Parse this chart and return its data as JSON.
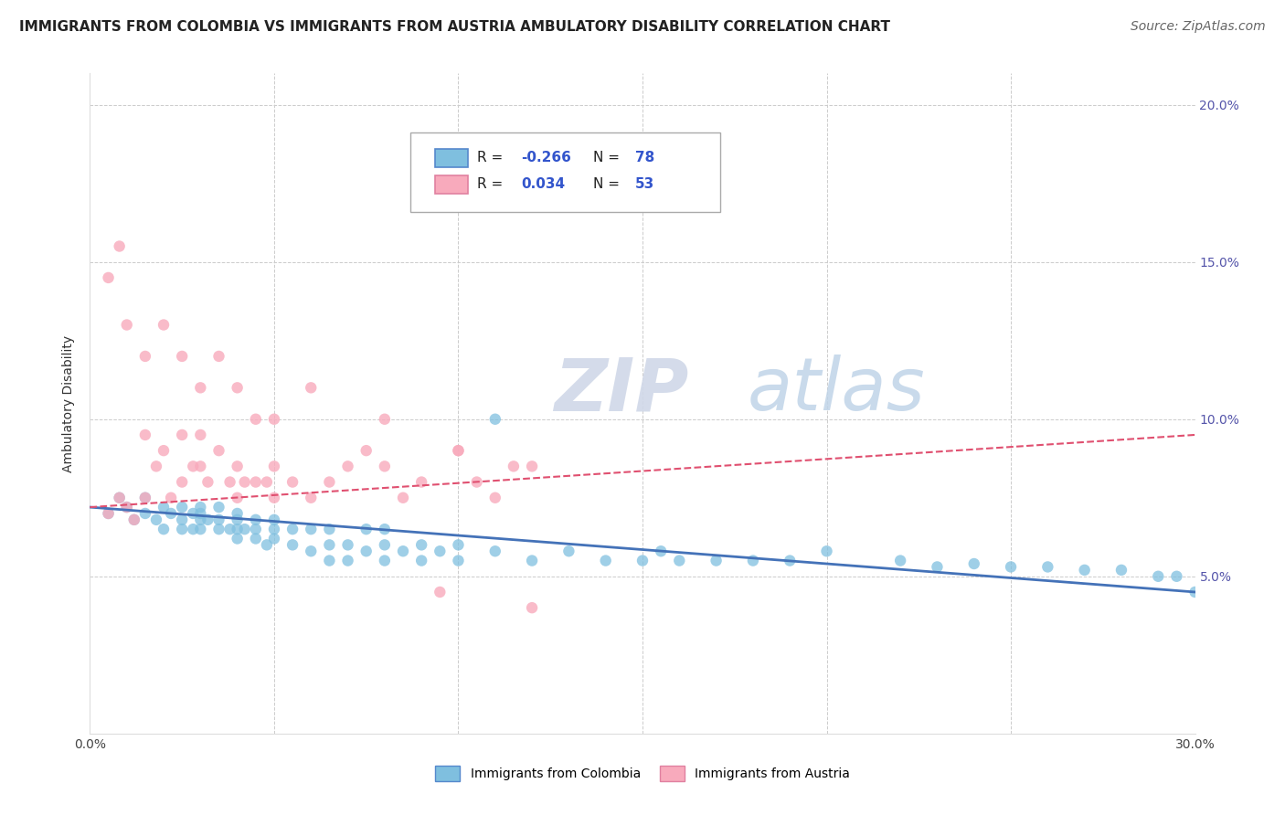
{
  "title": "IMMIGRANTS FROM COLOMBIA VS IMMIGRANTS FROM AUSTRIA AMBULATORY DISABILITY CORRELATION CHART",
  "source": "Source: ZipAtlas.com",
  "ylabel": "Ambulatory Disability",
  "xlim": [
    0.0,
    0.3
  ],
  "ylim": [
    0.0,
    0.21
  ],
  "x_ticks": [
    0.0,
    0.05,
    0.1,
    0.15,
    0.2,
    0.25,
    0.3
  ],
  "y_ticks": [
    0.0,
    0.05,
    0.1,
    0.15,
    0.2
  ],
  "y_tick_labels": [
    "",
    "5.0%",
    "10.0%",
    "15.0%",
    "20.0%"
  ],
  "colombia_R": "-0.266",
  "colombia_N": "78",
  "austria_R": "0.034",
  "austria_N": "53",
  "colombia_color": "#7fbfdf",
  "austria_color": "#f8aabc",
  "colombia_line_color": "#4472b8",
  "austria_line_color": "#e05070",
  "background_color": "#ffffff",
  "grid_color": "#cccccc",
  "legend_labels": [
    "Immigrants from Colombia",
    "Immigrants from Austria"
  ],
  "colombia_scatter_x": [
    0.005,
    0.008,
    0.01,
    0.012,
    0.015,
    0.015,
    0.018,
    0.02,
    0.02,
    0.022,
    0.025,
    0.025,
    0.025,
    0.028,
    0.028,
    0.03,
    0.03,
    0.03,
    0.03,
    0.032,
    0.035,
    0.035,
    0.035,
    0.038,
    0.04,
    0.04,
    0.04,
    0.04,
    0.042,
    0.045,
    0.045,
    0.045,
    0.048,
    0.05,
    0.05,
    0.05,
    0.055,
    0.055,
    0.06,
    0.06,
    0.065,
    0.065,
    0.065,
    0.07,
    0.07,
    0.075,
    0.075,
    0.08,
    0.08,
    0.08,
    0.085,
    0.09,
    0.09,
    0.095,
    0.1,
    0.1,
    0.11,
    0.11,
    0.12,
    0.13,
    0.14,
    0.15,
    0.155,
    0.16,
    0.17,
    0.18,
    0.19,
    0.2,
    0.22,
    0.23,
    0.24,
    0.25,
    0.26,
    0.27,
    0.28,
    0.29,
    0.295,
    0.3
  ],
  "colombia_scatter_y": [
    0.07,
    0.075,
    0.072,
    0.068,
    0.075,
    0.07,
    0.068,
    0.072,
    0.065,
    0.07,
    0.068,
    0.072,
    0.065,
    0.07,
    0.065,
    0.068,
    0.072,
    0.065,
    0.07,
    0.068,
    0.065,
    0.068,
    0.072,
    0.065,
    0.068,
    0.065,
    0.07,
    0.062,
    0.065,
    0.062,
    0.065,
    0.068,
    0.06,
    0.062,
    0.065,
    0.068,
    0.06,
    0.065,
    0.058,
    0.065,
    0.06,
    0.055,
    0.065,
    0.06,
    0.055,
    0.058,
    0.065,
    0.06,
    0.055,
    0.065,
    0.058,
    0.06,
    0.055,
    0.058,
    0.055,
    0.06,
    0.058,
    0.1,
    0.055,
    0.058,
    0.055,
    0.055,
    0.058,
    0.055,
    0.055,
    0.055,
    0.055,
    0.058,
    0.055,
    0.053,
    0.054,
    0.053,
    0.053,
    0.052,
    0.052,
    0.05,
    0.05,
    0.045
  ],
  "austria_scatter_x": [
    0.005,
    0.008,
    0.01,
    0.012,
    0.015,
    0.015,
    0.018,
    0.02,
    0.022,
    0.025,
    0.025,
    0.028,
    0.03,
    0.03,
    0.032,
    0.035,
    0.038,
    0.04,
    0.04,
    0.042,
    0.045,
    0.048,
    0.05,
    0.05,
    0.055,
    0.06,
    0.065,
    0.07,
    0.075,
    0.08,
    0.085,
    0.09,
    0.095,
    0.1,
    0.105,
    0.11,
    0.115,
    0.12,
    0.005,
    0.008,
    0.01,
    0.015,
    0.02,
    0.025,
    0.03,
    0.035,
    0.04,
    0.045,
    0.05,
    0.06,
    0.08,
    0.1,
    0.12
  ],
  "austria_scatter_y": [
    0.07,
    0.075,
    0.072,
    0.068,
    0.075,
    0.095,
    0.085,
    0.09,
    0.075,
    0.08,
    0.095,
    0.085,
    0.085,
    0.095,
    0.08,
    0.09,
    0.08,
    0.085,
    0.075,
    0.08,
    0.08,
    0.08,
    0.075,
    0.085,
    0.08,
    0.075,
    0.08,
    0.085,
    0.09,
    0.085,
    0.075,
    0.08,
    0.045,
    0.09,
    0.08,
    0.075,
    0.085,
    0.085,
    0.145,
    0.155,
    0.13,
    0.12,
    0.13,
    0.12,
    0.11,
    0.12,
    0.11,
    0.1,
    0.1,
    0.11,
    0.1,
    0.09,
    0.04
  ],
  "title_fontsize": 11,
  "tick_fontsize": 10,
  "source_fontsize": 10
}
